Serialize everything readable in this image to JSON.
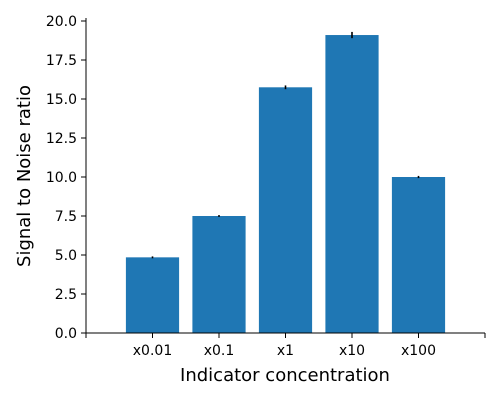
{
  "chart_data": {
    "type": "bar",
    "categories": [
      "x0.01",
      "x0.1",
      "x1",
      "x10",
      "x100"
    ],
    "values": [
      4.85,
      7.5,
      15.75,
      19.1,
      10.0
    ],
    "errors": [
      0.06,
      0.06,
      0.12,
      0.2,
      0.07
    ],
    "xlabel": "Indicator concentration",
    "ylabel": "Signal to Noise ratio",
    "ylim": [
      0,
      20
    ],
    "yticks": [
      0.0,
      2.5,
      5.0,
      7.5,
      10.0,
      12.5,
      15.0,
      17.5,
      20.0
    ],
    "ytick_labels": [
      "0.0",
      "2.5",
      "5.0",
      "7.5",
      "10.0",
      "12.5",
      "15.0",
      "17.5",
      "20.0"
    ],
    "bar_color": "#1f77b4",
    "grid": false,
    "legend": "none"
  }
}
